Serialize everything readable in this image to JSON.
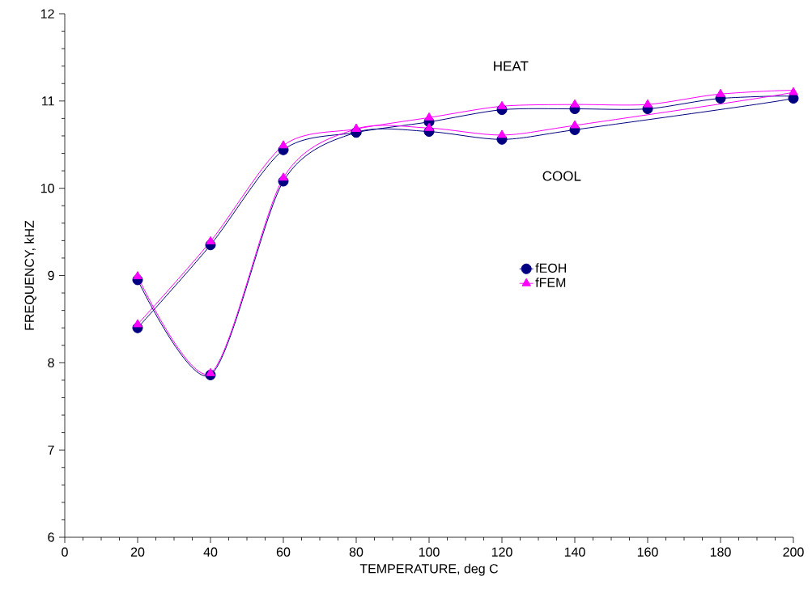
{
  "chart_data": {
    "type": "line",
    "xlabel": "TEMPERATURE, deg C",
    "ylabel": "FREQUENCY, kHZ",
    "xlim": [
      0,
      200
    ],
    "xticks": [
      0,
      20,
      40,
      60,
      80,
      100,
      120,
      140,
      160,
      180,
      200
    ],
    "ylim": [
      6,
      12
    ],
    "yticks": [
      6,
      7,
      8,
      9,
      10,
      11,
      12
    ],
    "grid": false,
    "legend": "right",
    "series": [
      {
        "name": "fEOH",
        "color": "#000080",
        "marker": "circle",
        "x": [
          20,
          40,
          60,
          80,
          100,
          120,
          140,
          160,
          180,
          200,
          140,
          120,
          100,
          80,
          60,
          40,
          20
        ],
        "values": [
          8.4,
          9.35,
          10.44,
          10.64,
          10.76,
          10.9,
          10.91,
          10.91,
          11.03,
          11.03,
          10.67,
          10.56,
          10.65,
          10.64,
          10.08,
          7.86,
          8.95
        ]
      },
      {
        "name": "fFEM",
        "color": "#ff00ff",
        "marker": "triangle",
        "x": [
          20,
          40,
          60,
          80,
          100,
          120,
          140,
          160,
          180,
          200,
          140,
          120,
          100,
          80,
          60,
          40,
          20
        ],
        "values": [
          8.44,
          9.39,
          10.49,
          10.68,
          10.81,
          10.94,
          10.96,
          10.96,
          11.08,
          11.1,
          10.72,
          10.61,
          10.69,
          10.68,
          10.12,
          7.88,
          8.99
        ]
      }
    ],
    "annotations": [
      "HEAT",
      "COOL"
    ]
  }
}
